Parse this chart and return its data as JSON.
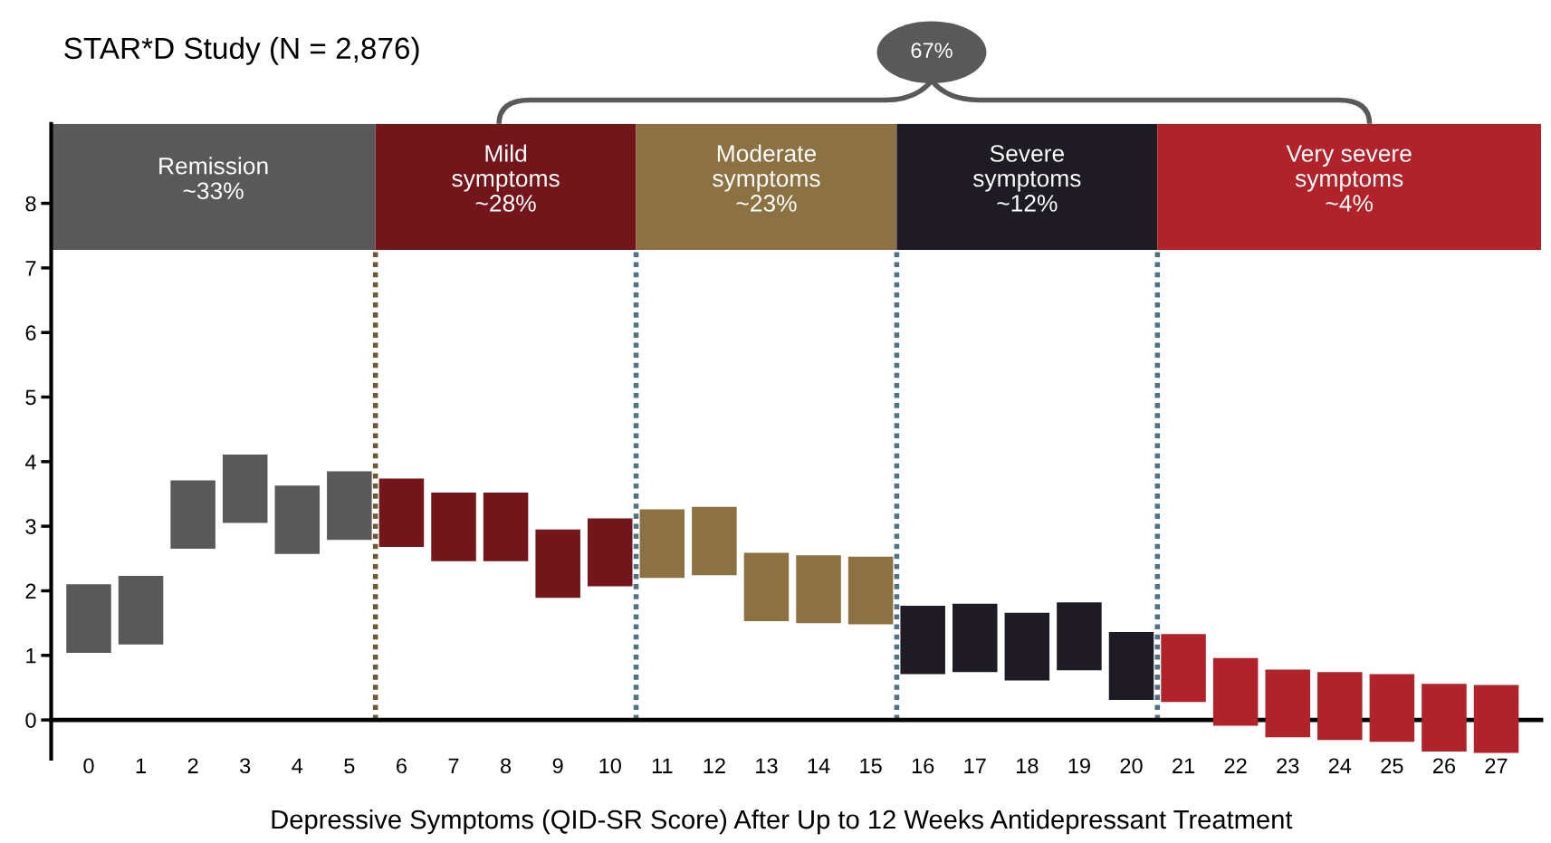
{
  "chart_data": {
    "type": "bar",
    "title": "STAR*D Study (N = 2,876)",
    "xlabel": "Depressive Symptoms (QID-SR Score) After Up to 12 Weeks Antidepressant Treatment",
    "x": [
      0,
      1,
      2,
      3,
      4,
      5,
      6,
      7,
      8,
      9,
      10,
      11,
      12,
      13,
      14,
      15,
      16,
      17,
      18,
      19,
      20,
      21,
      22,
      23,
      24,
      25,
      26,
      27
    ],
    "xlim": [
      -0.72,
      27.86
    ],
    "xticks": [
      0,
      1,
      2,
      3,
      4,
      5,
      6,
      7,
      8,
      9,
      10,
      11,
      12,
      13,
      14,
      15,
      16,
      17,
      18,
      19,
      20,
      21,
      22,
      23,
      24,
      25,
      26,
      27
    ],
    "base": [
      1.04,
      1.17,
      2.65,
      3.05,
      2.57,
      2.79,
      2.68,
      2.46,
      2.46,
      1.89,
      2.07,
      2.2,
      2.24,
      1.53,
      1.5,
      1.48,
      0.71,
      0.74,
      0.61,
      0.77,
      0.31,
      0.28,
      -0.09,
      -0.27,
      -0.31,
      -0.34,
      -0.49,
      -0.51
    ],
    "values": [
      1.06,
      1.06,
      1.06,
      1.06,
      1.06,
      1.06,
      1.06,
      1.06,
      1.06,
      1.06,
      1.05,
      1.06,
      1.06,
      1.06,
      1.05,
      1.05,
      1.06,
      1.06,
      1.05,
      1.05,
      1.05,
      1.05,
      1.05,
      1.05,
      1.05,
      1.05,
      1.05,
      1.05
    ],
    "colors": [
      "#595959",
      "#595959",
      "#595959",
      "#595959",
      "#595959",
      "#595959",
      "#73161b",
      "#73161b",
      "#73161b",
      "#73161b",
      "#73161b",
      "#8c7242",
      "#8c7242",
      "#8c7242",
      "#8c7242",
      "#8c7242",
      "#1e1b24",
      "#1e1b24",
      "#1e1b24",
      "#1e1b24",
      "#1e1b24",
      "#b0232b",
      "#b0232b",
      "#b0232b",
      "#b0232b",
      "#b0232b",
      "#b0232b",
      "#b0232b"
    ],
    "ylim": [
      -0.6,
      9.23
    ],
    "yticks": [
      0,
      1,
      2,
      3,
      4,
      5,
      6,
      7,
      8
    ],
    "grid": false,
    "ref_lines": [
      {
        "axis": "x",
        "value": 5.5,
        "color": "#6e5a35",
        "line_style": "dotted"
      },
      {
        "axis": "x",
        "value": 10.5,
        "color": "#4f7383",
        "line_style": "dotted"
      },
      {
        "axis": "x",
        "value": 15.5,
        "color": "#4f7383",
        "line_style": "dotted"
      },
      {
        "axis": "x",
        "value": 20.5,
        "color": "#4f7383",
        "line_style": "dotted"
      }
    ],
    "annotations": [
      "67%",
      "Remission\n~33%",
      "Mild\nsymptoms\n~28%",
      "Moderate\nsymptoms\n~23%",
      "Severe\nsymptoms\n~12%",
      "Very severe\nsymptoms\n~4%"
    ]
  }
}
